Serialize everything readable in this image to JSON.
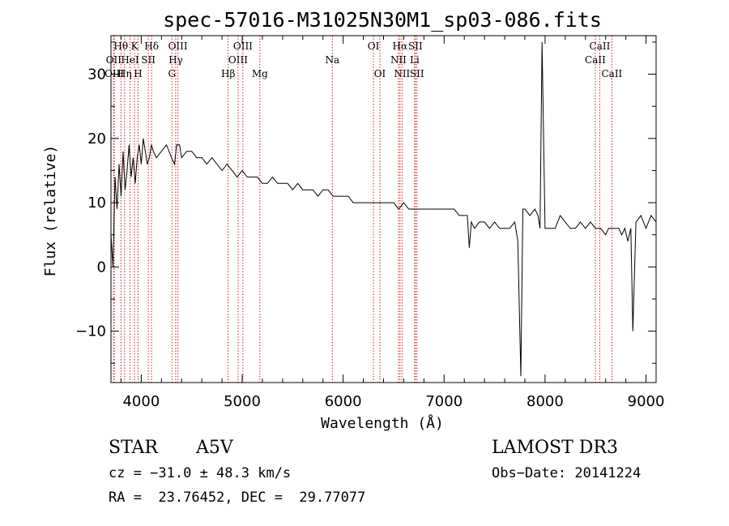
{
  "chart_data": {
    "type": "line",
    "title": "spec-57016-M31025N30M1_sp03-086.fits",
    "xlabel": "Wavelength (Å)",
    "ylabel": "Flux (relative)",
    "xlim": [
      3700,
      9100
    ],
    "ylim": [
      -18,
      36
    ],
    "xticks": [
      4000,
      5000,
      6000,
      7000,
      8000,
      9000
    ],
    "xtick_labels": [
      "4000",
      "5000",
      "6000",
      "7000",
      "8000",
      "9000"
    ],
    "yticks": [
      -10,
      0,
      10,
      20,
      30
    ],
    "ytick_labels": [
      "−10",
      "0",
      "10",
      "20",
      "30"
    ],
    "grid": false,
    "series": [
      {
        "name": "spectrum",
        "x": [
          3700,
          3720,
          3740,
          3760,
          3780,
          3800,
          3820,
          3840,
          3860,
          3880,
          3900,
          3920,
          3940,
          3960,
          3980,
          4000,
          4020,
          4040,
          4060,
          4080,
          4100,
          4120,
          4150,
          4200,
          4250,
          4300,
          4330,
          4350,
          4380,
          4400,
          4450,
          4500,
          4550,
          4600,
          4650,
          4700,
          4750,
          4800,
          4850,
          4900,
          4950,
          5000,
          5050,
          5100,
          5150,
          5200,
          5250,
          5300,
          5350,
          5400,
          5450,
          5500,
          5550,
          5600,
          5650,
          5700,
          5750,
          5800,
          5850,
          5900,
          5950,
          6000,
          6050,
          6100,
          6150,
          6200,
          6250,
          6300,
          6350,
          6400,
          6450,
          6500,
          6550,
          6600,
          6650,
          6700,
          6750,
          6800,
          6850,
          6900,
          6950,
          7000,
          7050,
          7100,
          7150,
          7200,
          7230,
          7250,
          7270,
          7300,
          7350,
          7400,
          7450,
          7500,
          7550,
          7600,
          7650,
          7700,
          7730,
          7760,
          7780,
          7800,
          7850,
          7900,
          7930,
          7950,
          7970,
          8000,
          8050,
          8100,
          8150,
          8200,
          8250,
          8300,
          8350,
          8400,
          8450,
          8500,
          8550,
          8600,
          8630,
          8660,
          8700,
          8730,
          8760,
          8790,
          8820,
          8850,
          8870,
          8900,
          8950,
          9000,
          9050,
          9100
        ],
        "y": [
          5,
          0,
          14,
          9,
          16,
          11,
          18,
          12,
          15,
          19,
          14,
          17,
          13,
          17,
          19,
          16,
          20,
          18,
          16,
          17,
          19,
          18,
          17,
          18,
          19,
          17,
          16,
          19,
          19,
          17,
          18,
          18,
          17,
          17,
          16,
          17,
          16,
          15,
          16,
          15,
          14,
          15,
          14,
          14,
          14,
          13,
          13,
          14,
          13,
          13,
          13,
          12,
          13,
          12,
          12,
          12,
          11,
          12,
          12,
          11,
          11,
          11,
          11,
          10,
          10,
          10,
          10,
          10,
          10,
          10,
          10,
          10,
          9,
          10,
          9,
          9,
          9,
          9,
          9,
          9,
          9,
          9,
          9,
          9,
          8,
          8,
          8,
          3,
          7,
          6,
          7,
          7,
          6,
          7,
          6,
          6,
          6,
          7,
          4,
          -17,
          9,
          9,
          8,
          9,
          8,
          6,
          35,
          6,
          6,
          6,
          8,
          7,
          6,
          6,
          7,
          6,
          7,
          6,
          6,
          5,
          6,
          6,
          6,
          6,
          5,
          6,
          4,
          6,
          -10,
          7,
          8,
          6,
          8,
          7
        ]
      }
    ],
    "lines": [
      {
        "label": "Hθ",
        "x": 3798,
        "row": 1
      },
      {
        "label": "OII",
        "x": 3727,
        "row": 2
      },
      {
        "label": "OIII",
        "x": 3733,
        "row": 3
      },
      {
        "label": "K",
        "x": 3934,
        "row": 1
      },
      {
        "label": "HeI",
        "x": 3889,
        "row": 2
      },
      {
        "label": "Hη",
        "x": 3835,
        "row": 3
      },
      {
        "label": "Hδ",
        "x": 4102,
        "row": 1
      },
      {
        "label": "SII",
        "x": 4070,
        "row": 2
      },
      {
        "label": "H",
        "x": 3969,
        "row": 3
      },
      {
        "label": "OIII",
        "x": 4363,
        "row": 1
      },
      {
        "label": "Hγ",
        "x": 4341,
        "row": 2
      },
      {
        "label": "G",
        "x": 4304,
        "row": 3
      },
      {
        "label": "OIII",
        "x": 5007,
        "row": 1
      },
      {
        "label": "OIII",
        "x": 4959,
        "row": 2
      },
      {
        "label": "Hβ",
        "x": 4861,
        "row": 3
      },
      {
        "label": "Mg",
        "x": 5175,
        "row": 3
      },
      {
        "label": "Na",
        "x": 5893,
        "row": 2
      },
      {
        "label": "OI",
        "x": 6300,
        "row": 1
      },
      {
        "label": "OI",
        "x": 6364,
        "row": 3
      },
      {
        "label": "Hα",
        "x": 6563,
        "row": 1
      },
      {
        "label": "SII",
        "x": 6716,
        "row": 1
      },
      {
        "label": "NII",
        "x": 6548,
        "row": 2
      },
      {
        "label": "Li",
        "x": 6708,
        "row": 2
      },
      {
        "label": "NII",
        "x": 6583,
        "row": 3
      },
      {
        "label": "SII",
        "x": 6731,
        "row": 3
      },
      {
        "label": "CaII",
        "x": 8542,
        "row": 1
      },
      {
        "label": "CaII",
        "x": 8498,
        "row": 2
      },
      {
        "label": "CaII",
        "x": 8662,
        "row": 3
      }
    ],
    "line_color": "#d81e1e"
  },
  "info": {
    "class": "STAR",
    "subclass": "A5V",
    "survey": "LAMOST DR3",
    "cz": "cz = −31.0 ± 48.3 km/s",
    "obs_date": "Obs−Date: 20141224",
    "coords": "RA =  23.76452, DEC =  29.77077"
  }
}
